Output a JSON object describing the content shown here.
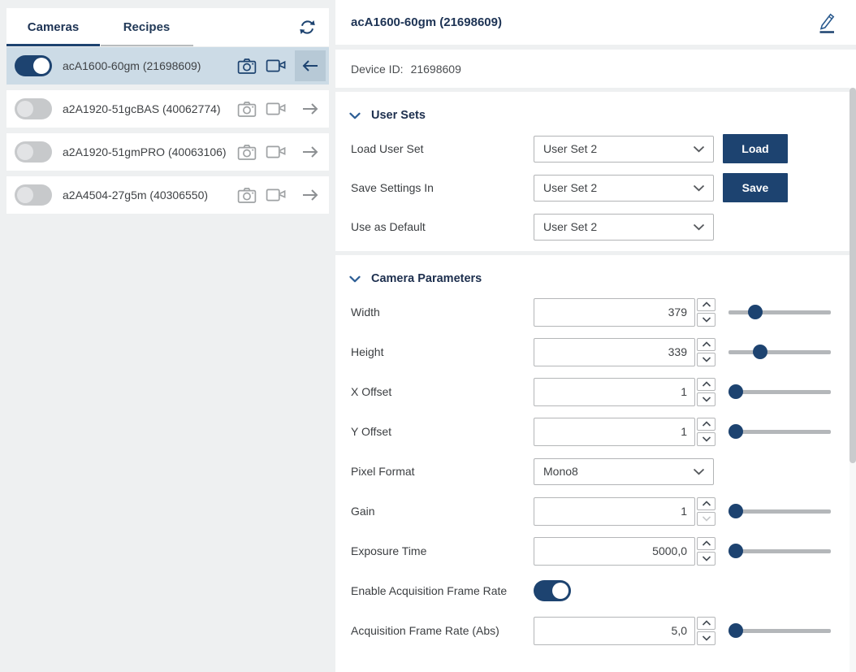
{
  "colors": {
    "accent_navy": "#1d4370",
    "icon_blue": "#2a5a8e",
    "selected_row_bg": "#ccdbe6",
    "arrow_button_bg": "#b7c9d6",
    "page_bg": "#eef0f1",
    "toggle_off_gray": "#c7c9cb"
  },
  "icons": {
    "refresh": "refresh-icon",
    "snapshot": "camera-icon",
    "stream": "video-camera-icon",
    "back": "arrow-left-icon",
    "open": "arrow-right-icon",
    "edit": "pencil-icon",
    "section_collapse": "chevron-down-icon",
    "dropdown": "chevron-down-icon",
    "spin_up": "chevron-up-icon",
    "spin_down": "chevron-down-icon"
  },
  "sidebar": {
    "tabs": [
      {
        "label": "Cameras",
        "active": true
      },
      {
        "label": "Recipes",
        "active": false
      }
    ],
    "cameras": [
      {
        "name": "acA1600-60gm (21698609)",
        "enabled": true,
        "selected": true,
        "arrow": "left"
      },
      {
        "name": "a2A1920-51gcBAS (40062774)",
        "enabled": false,
        "selected": false,
        "arrow": "right"
      },
      {
        "name": "a2A1920-51gmPRO (40063106)",
        "enabled": false,
        "selected": false,
        "arrow": "right"
      },
      {
        "name": "a2A4504-27g5m (40306550)",
        "enabled": false,
        "selected": false,
        "arrow": "right"
      }
    ]
  },
  "header": {
    "title": "acA1600-60gm (21698609)"
  },
  "device": {
    "label": "Device ID:",
    "value": "21698609"
  },
  "user_sets": {
    "title": "User Sets",
    "rows": [
      {
        "label": "Load User Set",
        "value": "User Set 2",
        "button": "Load"
      },
      {
        "label": "Save Settings In",
        "value": "User Set 2",
        "button": "Save"
      },
      {
        "label": "Use as Default",
        "value": "User Set 2"
      }
    ]
  },
  "camera_parameters": {
    "title": "Camera Parameters",
    "rows": [
      {
        "label": "Width",
        "type": "number",
        "value": "379",
        "slider_percent": 22
      },
      {
        "label": "Height",
        "type": "number",
        "value": "339",
        "slider_percent": 28
      },
      {
        "label": "X Offset",
        "type": "number",
        "value": "1",
        "slider_percent": 0
      },
      {
        "label": "Y Offset",
        "type": "number",
        "value": "1",
        "slider_percent": 0
      },
      {
        "label": "Pixel Format",
        "type": "select",
        "value": "Mono8"
      },
      {
        "label": "Gain",
        "type": "number",
        "value": "1",
        "slider_percent": 0,
        "spin_down_disabled": true
      },
      {
        "label": "Exposure Time",
        "type": "number",
        "value": "5000,0",
        "slider_percent": 0
      },
      {
        "label": "Enable Acquisition Frame Rate",
        "type": "toggle",
        "toggle_on": true
      },
      {
        "label": "Acquisition Frame Rate (Abs)",
        "type": "number",
        "value": "5,0",
        "slider_percent": 0
      }
    ]
  }
}
